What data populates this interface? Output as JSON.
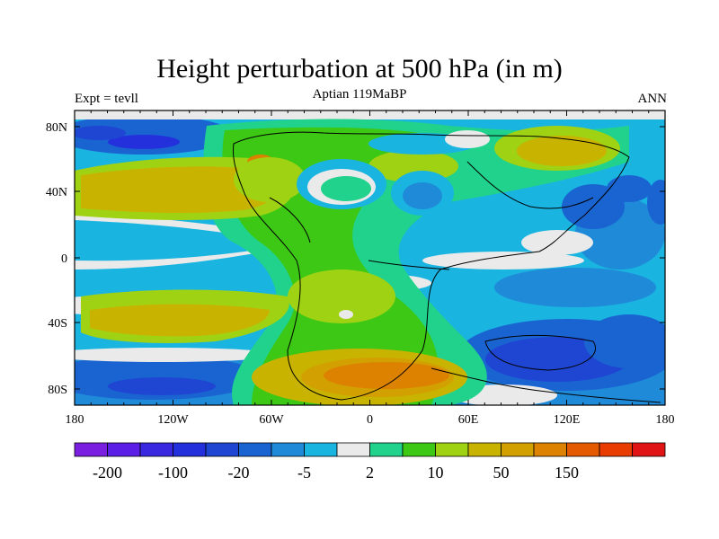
{
  "title": "Height perturbation at 500 hPa (in m)",
  "subtitle_left": "Expt = tevll",
  "subtitle_center": "Aptian   119MaBP",
  "subtitle_right": "ANN",
  "lat_labels": [
    "80N",
    "40N",
    "0",
    "40S",
    "80S"
  ],
  "lon_labels": [
    "180",
    "120W",
    "60W",
    "0",
    "60E",
    "120E",
    "180"
  ],
  "colorbar": {
    "colors": [
      "#7a1ee0",
      "#5a1ee6",
      "#3a28e0",
      "#2430dc",
      "#1e46d2",
      "#1a64d2",
      "#1e8ad8",
      "#1ab4e0",
      "#eaeaea",
      "#20d28c",
      "#3cc814",
      "#a0d214",
      "#c8b400",
      "#d2a000",
      "#dc8200",
      "#e45a00",
      "#e83c00",
      "#e01414"
    ],
    "tick_labels": [
      "-200",
      "-100",
      "-20",
      "-5",
      "2",
      "10",
      "50",
      "150"
    ]
  },
  "chart_data": {
    "type": "heatmap",
    "title": "Height perturbation at 500 hPa (in m)",
    "variable": "500 hPa geopotential height perturbation",
    "units": "m",
    "lon_range": [
      -180,
      180
    ],
    "lat_range": [
      -90,
      90
    ],
    "x_ticks": [
      "180",
      "120W",
      "60W",
      "0",
      "60E",
      "120E",
      "180"
    ],
    "y_ticks": [
      "80N",
      "40N",
      "0",
      "40S",
      "80S"
    ],
    "contour_levels": [
      -200,
      -100,
      -20,
      -5,
      2,
      10,
      50,
      150
    ]
  }
}
